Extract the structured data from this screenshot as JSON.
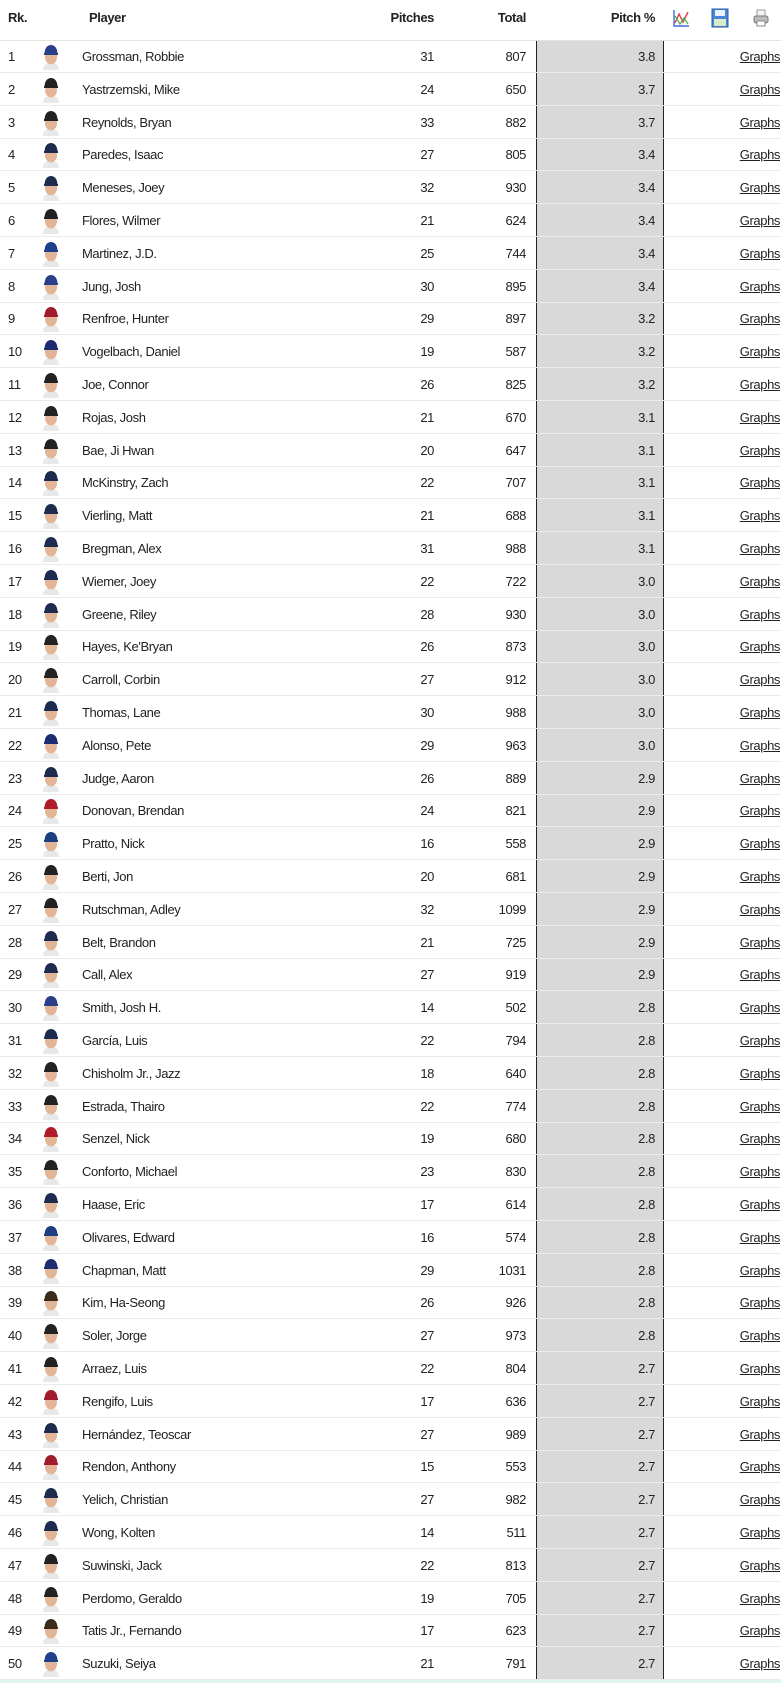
{
  "header": {
    "rank": "Rk.",
    "player": "Player",
    "pitches": "Pitches",
    "total": "Total",
    "pitch_pct": "Pitch %",
    "icons": [
      "chart-icon",
      "save-icon",
      "print-icon"
    ]
  },
  "link_label": "Graphs",
  "rows": [
    {
      "rk": "1",
      "name": "Grossman, Robbie",
      "pitches": "31",
      "total": "807",
      "pct": "3.8",
      "cap": "#2a3f8a"
    },
    {
      "rk": "2",
      "name": "Yastrzemski, Mike",
      "pitches": "24",
      "total": "650",
      "pct": "3.7",
      "cap": "#222222"
    },
    {
      "rk": "3",
      "name": "Reynolds, Bryan",
      "pitches": "33",
      "total": "882",
      "pct": "3.7",
      "cap": "#222222"
    },
    {
      "rk": "4",
      "name": "Paredes, Isaac",
      "pitches": "27",
      "total": "805",
      "pct": "3.4",
      "cap": "#1d2b4f"
    },
    {
      "rk": "5",
      "name": "Meneses, Joey",
      "pitches": "32",
      "total": "930",
      "pct": "3.4",
      "cap": "#1d2b4f"
    },
    {
      "rk": "6",
      "name": "Flores, Wilmer",
      "pitches": "21",
      "total": "624",
      "pct": "3.4",
      "cap": "#222222"
    },
    {
      "rk": "7",
      "name": "Martinez, J.D.",
      "pitches": "25",
      "total": "744",
      "pct": "3.4",
      "cap": "#1e3f8a"
    },
    {
      "rk": "8",
      "name": "Jung, Josh",
      "pitches": "30",
      "total": "895",
      "pct": "3.4",
      "cap": "#2a3f8a"
    },
    {
      "rk": "9",
      "name": "Renfroe, Hunter",
      "pitches": "29",
      "total": "897",
      "pct": "3.2",
      "cap": "#a01c2c"
    },
    {
      "rk": "10",
      "name": "Vogelbach, Daniel",
      "pitches": "19",
      "total": "587",
      "pct": "3.2",
      "cap": "#1d2b6f"
    },
    {
      "rk": "11",
      "name": "Joe, Connor",
      "pitches": "26",
      "total": "825",
      "pct": "3.2",
      "cap": "#222222"
    },
    {
      "rk": "12",
      "name": "Rojas, Josh",
      "pitches": "21",
      "total": "670",
      "pct": "3.1",
      "cap": "#222222"
    },
    {
      "rk": "13",
      "name": "Bae, Ji Hwan",
      "pitches": "20",
      "total": "647",
      "pct": "3.1",
      "cap": "#222222"
    },
    {
      "rk": "14",
      "name": "McKinstry, Zach",
      "pitches": "22",
      "total": "707",
      "pct": "3.1",
      "cap": "#1d2b4f"
    },
    {
      "rk": "15",
      "name": "Vierling, Matt",
      "pitches": "21",
      "total": "688",
      "pct": "3.1",
      "cap": "#1d2b4f"
    },
    {
      "rk": "16",
      "name": "Bregman, Alex",
      "pitches": "31",
      "total": "988",
      "pct": "3.1",
      "cap": "#1d2b4f"
    },
    {
      "rk": "17",
      "name": "Wiemer, Joey",
      "pitches": "22",
      "total": "722",
      "pct": "3.0",
      "cap": "#1d2b4f"
    },
    {
      "rk": "18",
      "name": "Greene, Riley",
      "pitches": "28",
      "total": "930",
      "pct": "3.0",
      "cap": "#1d2b4f"
    },
    {
      "rk": "19",
      "name": "Hayes, Ke'Bryan",
      "pitches": "26",
      "total": "873",
      "pct": "3.0",
      "cap": "#222222"
    },
    {
      "rk": "20",
      "name": "Carroll, Corbin",
      "pitches": "27",
      "total": "912",
      "pct": "3.0",
      "cap": "#222222"
    },
    {
      "rk": "21",
      "name": "Thomas, Lane",
      "pitches": "30",
      "total": "988",
      "pct": "3.0",
      "cap": "#1d2b4f"
    },
    {
      "rk": "22",
      "name": "Alonso, Pete",
      "pitches": "29",
      "total": "963",
      "pct": "3.0",
      "cap": "#1d2b6f"
    },
    {
      "rk": "23",
      "name": "Judge, Aaron",
      "pitches": "26",
      "total": "889",
      "pct": "2.9",
      "cap": "#1d2b4f"
    },
    {
      "rk": "24",
      "name": "Donovan, Brendan",
      "pitches": "24",
      "total": "821",
      "pct": "2.9",
      "cap": "#b01c2c"
    },
    {
      "rk": "25",
      "name": "Pratto, Nick",
      "pitches": "16",
      "total": "558",
      "pct": "2.9",
      "cap": "#1d3f7f"
    },
    {
      "rk": "26",
      "name": "Berti, Jon",
      "pitches": "20",
      "total": "681",
      "pct": "2.9",
      "cap": "#222222"
    },
    {
      "rk": "27",
      "name": "Rutschman, Adley",
      "pitches": "32",
      "total": "1099",
      "pct": "2.9",
      "cap": "#222222"
    },
    {
      "rk": "28",
      "name": "Belt, Brandon",
      "pitches": "21",
      "total": "725",
      "pct": "2.9",
      "cap": "#1d2b4f"
    },
    {
      "rk": "29",
      "name": "Call, Alex",
      "pitches": "27",
      "total": "919",
      "pct": "2.9",
      "cap": "#1d2b4f"
    },
    {
      "rk": "30",
      "name": "Smith, Josh H.",
      "pitches": "14",
      "total": "502",
      "pct": "2.8",
      "cap": "#2a3f8a"
    },
    {
      "rk": "31",
      "name": "García, Luis",
      "pitches": "22",
      "total": "794",
      "pct": "2.8",
      "cap": "#1d2b4f"
    },
    {
      "rk": "32",
      "name": "Chisholm Jr., Jazz",
      "pitches": "18",
      "total": "640",
      "pct": "2.8",
      "cap": "#222222"
    },
    {
      "rk": "33",
      "name": "Estrada, Thairo",
      "pitches": "22",
      "total": "774",
      "pct": "2.8",
      "cap": "#222222"
    },
    {
      "rk": "34",
      "name": "Senzel, Nick",
      "pitches": "19",
      "total": "680",
      "pct": "2.8",
      "cap": "#b01c2c"
    },
    {
      "rk": "35",
      "name": "Conforto, Michael",
      "pitches": "23",
      "total": "830",
      "pct": "2.8",
      "cap": "#222222"
    },
    {
      "rk": "36",
      "name": "Haase, Eric",
      "pitches": "17",
      "total": "614",
      "pct": "2.8",
      "cap": "#1d2b4f"
    },
    {
      "rk": "37",
      "name": "Olivares, Edward",
      "pitches": "16",
      "total": "574",
      "pct": "2.8",
      "cap": "#1d3f7f"
    },
    {
      "rk": "38",
      "name": "Chapman, Matt",
      "pitches": "29",
      "total": "1031",
      "pct": "2.8",
      "cap": "#1d2b6f"
    },
    {
      "rk": "39",
      "name": "Kim, Ha-Seong",
      "pitches": "26",
      "total": "926",
      "pct": "2.8",
      "cap": "#3a2a1a"
    },
    {
      "rk": "40",
      "name": "Soler, Jorge",
      "pitches": "27",
      "total": "973",
      "pct": "2.8",
      "cap": "#222222"
    },
    {
      "rk": "41",
      "name": "Arraez, Luis",
      "pitches": "22",
      "total": "804",
      "pct": "2.7",
      "cap": "#222222"
    },
    {
      "rk": "42",
      "name": "Rengifo, Luis",
      "pitches": "17",
      "total": "636",
      "pct": "2.7",
      "cap": "#a01c2c"
    },
    {
      "rk": "43",
      "name": "Hernández, Teoscar",
      "pitches": "27",
      "total": "989",
      "pct": "2.7",
      "cap": "#1d2b4f"
    },
    {
      "rk": "44",
      "name": "Rendon, Anthony",
      "pitches": "15",
      "total": "553",
      "pct": "2.7",
      "cap": "#a01c2c"
    },
    {
      "rk": "45",
      "name": "Yelich, Christian",
      "pitches": "27",
      "total": "982",
      "pct": "2.7",
      "cap": "#1d2b4f"
    },
    {
      "rk": "46",
      "name": "Wong, Kolten",
      "pitches": "14",
      "total": "511",
      "pct": "2.7",
      "cap": "#1d2b4f"
    },
    {
      "rk": "47",
      "name": "Suwinski, Jack",
      "pitches": "22",
      "total": "813",
      "pct": "2.7",
      "cap": "#222222"
    },
    {
      "rk": "48",
      "name": "Perdomo, Geraldo",
      "pitches": "19",
      "total": "705",
      "pct": "2.7",
      "cap": "#222222"
    },
    {
      "rk": "49",
      "name": "Tatis Jr., Fernando",
      "pitches": "17",
      "total": "623",
      "pct": "2.7",
      "cap": "#3a2a1a"
    },
    {
      "rk": "50",
      "name": "Suzuki, Seiya",
      "pitches": "21",
      "total": "791",
      "pct": "2.7",
      "cap": "#1e3f8a"
    }
  ]
}
